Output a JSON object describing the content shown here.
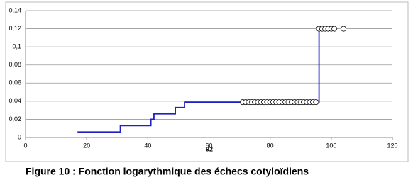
{
  "chart_data": {
    "type": "step",
    "x_label": "92",
    "caption": "Figure 10 : Fonction logarythmique des échecs cotyloïdiens",
    "xlim": [
      0,
      120
    ],
    "xticks": [
      0,
      20,
      40,
      60,
      80,
      100,
      120
    ],
    "ylim": [
      0,
      0.14
    ],
    "yticks": [
      {
        "value": 0,
        "label": "0"
      },
      {
        "value": 0.02,
        "label": "0,02"
      },
      {
        "value": 0.04,
        "label": "0,04"
      },
      {
        "value": 0.06,
        "label": "0,06"
      },
      {
        "value": 0.08,
        "label": "0,08"
      },
      {
        "value": 0.1,
        "label": "0,1"
      },
      {
        "value": 0.12,
        "label": "0,12"
      },
      {
        "value": 0.14,
        "label": "0,14"
      }
    ],
    "grid": true,
    "series": [
      {
        "color": "#1f1fc8",
        "x": [
          17,
          31,
          41,
          42,
          49,
          52,
          96,
          101
        ],
        "values": [
          0.006,
          0.013,
          0.02,
          0.026,
          0.033,
          0.039,
          0.12,
          0.12
        ]
      },
      {
        "color": "#000000",
        "marker": "circle",
        "x": [
          71,
          72,
          73,
          74,
          75,
          76,
          77,
          78,
          79,
          80,
          81,
          82,
          83,
          84,
          85,
          86,
          87,
          88,
          89,
          90,
          91,
          92,
          93,
          94,
          95,
          96,
          97,
          98,
          99,
          100,
          101,
          104
        ],
        "values": [
          0.039,
          0.039,
          0.039,
          0.039,
          0.039,
          0.039,
          0.039,
          0.039,
          0.039,
          0.039,
          0.039,
          0.039,
          0.039,
          0.039,
          0.039,
          0.039,
          0.039,
          0.039,
          0.039,
          0.039,
          0.039,
          0.039,
          0.039,
          0.039,
          0.039,
          0.12,
          0.12,
          0.12,
          0.12,
          0.12,
          0.12,
          0.12
        ]
      }
    ]
  }
}
